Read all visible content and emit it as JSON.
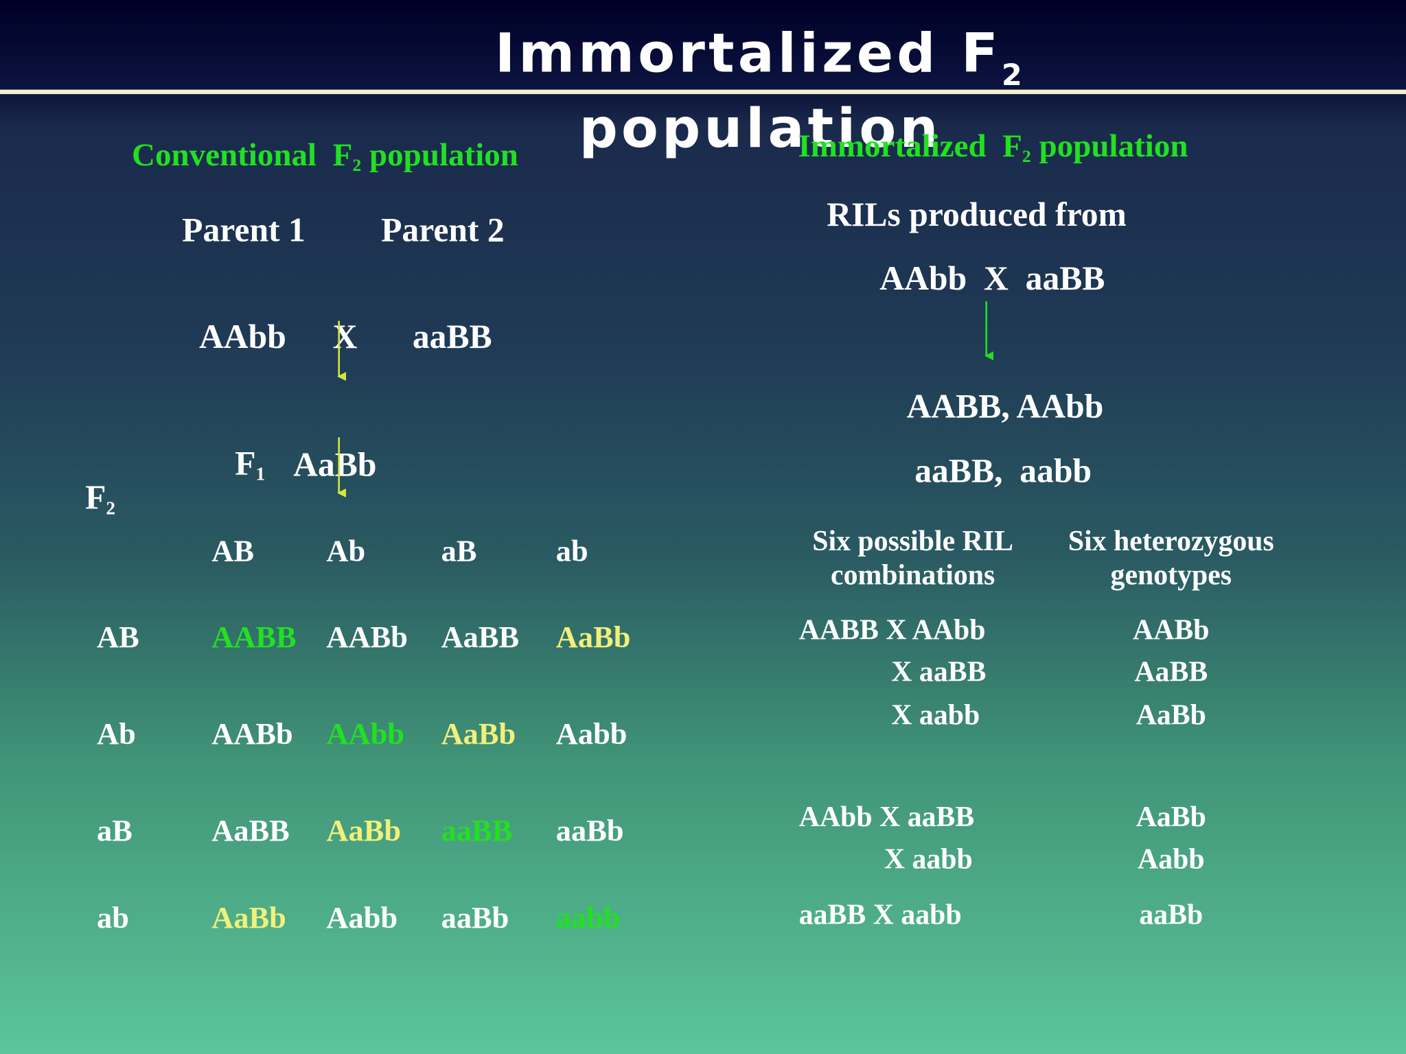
{
  "title": {
    "line1": "Immortalized F",
    "line1_sub": "2",
    "line2": "population"
  },
  "left": {
    "heading": {
      "text": "Conventional  F",
      "sub": "2",
      "rest": " population"
    },
    "parent1": "Parent 1",
    "parent2": "Parent 2",
    "cross": {
      "p1": "AAbb",
      "x": "X",
      "p2": "aaBB"
    },
    "f1": {
      "label": "F",
      "sub": "1",
      "genotype": "AaBb"
    },
    "f2": {
      "label": "F",
      "sub": "2"
    },
    "grid": {
      "column_headers": [
        "AB",
        "Ab",
        "aB",
        "ab"
      ],
      "rows": [
        {
          "label": "AB",
          "cells": [
            {
              "text": "AABB",
              "color": "#22e022"
            },
            {
              "text": "AABb",
              "color": "#ffffff"
            },
            {
              "text": "AaBB",
              "color": "#ffffff"
            },
            {
              "text": "AaBb",
              "color": "#f2f07a"
            }
          ]
        },
        {
          "label": "Ab",
          "cells": [
            {
              "text": "AABb",
              "color": "#ffffff"
            },
            {
              "text": "AAbb",
              "color": "#22e022"
            },
            {
              "text": "AaBb",
              "color": "#f2f07a"
            },
            {
              "text": "Aabb",
              "color": "#ffffff"
            }
          ]
        },
        {
          "label": "aB",
          "cells": [
            {
              "text": "AaBB",
              "color": "#ffffff"
            },
            {
              "text": "AaBb",
              "color": "#f2f07a"
            },
            {
              "text": "aaBB",
              "color": "#22e022"
            },
            {
              "text": "aaBb",
              "color": "#ffffff"
            }
          ]
        },
        {
          "label": "ab",
          "cells": [
            {
              "text": "AaBb",
              "color": "#f2f07a"
            },
            {
              "text": "Aabb",
              "color": "#ffffff"
            },
            {
              "text": "aaBb",
              "color": "#ffffff"
            },
            {
              "text": "aabb",
              "color": "#22e022"
            }
          ]
        }
      ]
    }
  },
  "right": {
    "heading": {
      "text": "Immortalized  F",
      "sub": "2",
      "rest": " population"
    },
    "rils_from": "RILs produced from",
    "cross": "AAbb  X  aaBB",
    "rils_line1": "AABB, AAbb",
    "rils_line2": "aaBB,  aabb",
    "col1_header": [
      "Six possible RIL",
      "combinations"
    ],
    "col2_header": [
      "Six heterozygous",
      "genotypes"
    ],
    "combinations": [
      "AABB X AAbb",
      "X aaBB",
      "X aabb",
      "AAbb X aaBB",
      "X aabb",
      "aaBB X aabb"
    ],
    "genotypes": [
      "AABb",
      "AaBB",
      "AaBb",
      "AaBb",
      "Aabb",
      "aaBb"
    ]
  }
}
